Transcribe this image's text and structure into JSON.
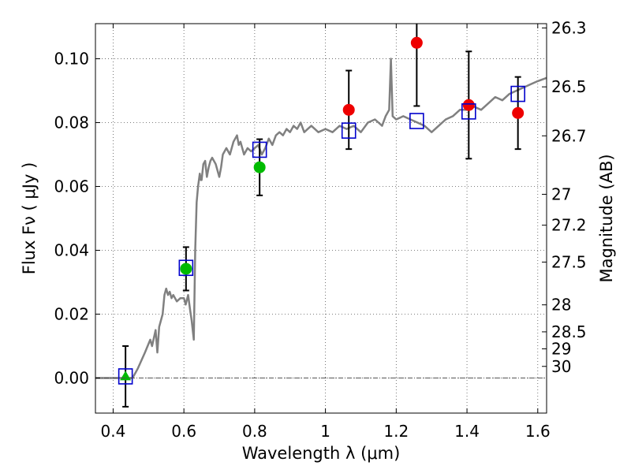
{
  "chart_data": {
    "type": "scatter",
    "xlabel": "Wavelength  λ (μm)",
    "ylabel": "Flux  Fν  ( μJy )",
    "y2label": "Magnitude (AB)",
    "xlim": [
      0.35,
      1.625
    ],
    "ylim": [
      -0.011,
      0.111
    ],
    "grid": true,
    "x_ticks": [
      {
        "value": 0.4,
        "label": "0.4"
      },
      {
        "value": 0.6,
        "label": "0.6"
      },
      {
        "value": 0.8,
        "label": "0.8"
      },
      {
        "value": 1.0,
        "label": "1"
      },
      {
        "value": 1.2,
        "label": "1.2"
      },
      {
        "value": 1.4,
        "label": "1.4"
      },
      {
        "value": 1.6,
        "label": "1.6"
      }
    ],
    "y_ticks": [
      {
        "value": 0.0,
        "label": "0.00"
      },
      {
        "value": 0.02,
        "label": "0.02"
      },
      {
        "value": 0.04,
        "label": "0.04"
      },
      {
        "value": 0.06,
        "label": "0.06"
      },
      {
        "value": 0.08,
        "label": "0.08"
      },
      {
        "value": 0.1,
        "label": "0.10"
      }
    ],
    "mag_ticks": [
      {
        "mag": 26.3,
        "label": "26.3"
      },
      {
        "mag": 26.5,
        "label": "26.5"
      },
      {
        "mag": 26.7,
        "label": "26.7"
      },
      {
        "mag": 27.0,
        "label": "27"
      },
      {
        "mag": 27.2,
        "label": "27.2"
      },
      {
        "mag": 27.5,
        "label": "27.5"
      },
      {
        "mag": 28.0,
        "label": "28"
      },
      {
        "mag": 28.5,
        "label": "28.5"
      },
      {
        "mag": 29.0,
        "label": "29"
      },
      {
        "mag": 30.0,
        "label": "30"
      }
    ],
    "colors": {
      "model": "#808080",
      "box": "#0000cc",
      "red": "#ee0000",
      "green": "#00bb00",
      "errorbar": "#000000",
      "grid": "#555555"
    },
    "model_spectrum": [
      [
        0.35,
        0.0
      ],
      [
        0.44,
        0.0
      ],
      [
        0.455,
        0.0
      ],
      [
        0.47,
        0.003
      ],
      [
        0.49,
        0.008
      ],
      [
        0.505,
        0.012
      ],
      [
        0.51,
        0.01
      ],
      [
        0.52,
        0.015
      ],
      [
        0.525,
        0.008
      ],
      [
        0.53,
        0.016
      ],
      [
        0.54,
        0.02
      ],
      [
        0.545,
        0.026
      ],
      [
        0.55,
        0.028
      ],
      [
        0.555,
        0.026
      ],
      [
        0.56,
        0.027
      ],
      [
        0.565,
        0.025
      ],
      [
        0.57,
        0.026
      ],
      [
        0.58,
        0.024
      ],
      [
        0.59,
        0.025
      ],
      [
        0.6,
        0.025
      ],
      [
        0.605,
        0.023
      ],
      [
        0.612,
        0.026
      ],
      [
        0.618,
        0.021
      ],
      [
        0.622,
        0.018
      ],
      [
        0.628,
        0.012
      ],
      [
        0.632,
        0.04
      ],
      [
        0.636,
        0.055
      ],
      [
        0.64,
        0.06
      ],
      [
        0.645,
        0.064
      ],
      [
        0.648,
        0.062
      ],
      [
        0.65,
        0.062
      ],
      [
        0.655,
        0.067
      ],
      [
        0.66,
        0.068
      ],
      [
        0.665,
        0.063
      ],
      [
        0.67,
        0.066
      ],
      [
        0.675,
        0.068
      ],
      [
        0.68,
        0.069
      ],
      [
        0.69,
        0.067
      ],
      [
        0.7,
        0.063
      ],
      [
        0.705,
        0.066
      ],
      [
        0.71,
        0.07
      ],
      [
        0.72,
        0.072
      ],
      [
        0.73,
        0.07
      ],
      [
        0.74,
        0.074
      ],
      [
        0.75,
        0.076
      ],
      [
        0.755,
        0.073
      ],
      [
        0.76,
        0.074
      ],
      [
        0.77,
        0.07
      ],
      [
        0.78,
        0.072
      ],
      [
        0.79,
        0.071
      ],
      [
        0.8,
        0.072
      ],
      [
        0.81,
        0.073
      ],
      [
        0.82,
        0.07
      ],
      [
        0.83,
        0.072
      ],
      [
        0.84,
        0.075
      ],
      [
        0.85,
        0.073
      ],
      [
        0.86,
        0.076
      ],
      [
        0.87,
        0.077
      ],
      [
        0.88,
        0.076
      ],
      [
        0.89,
        0.078
      ],
      [
        0.9,
        0.077
      ],
      [
        0.91,
        0.079
      ],
      [
        0.92,
        0.078
      ],
      [
        0.93,
        0.08
      ],
      [
        0.94,
        0.077
      ],
      [
        0.95,
        0.078
      ],
      [
        0.96,
        0.079
      ],
      [
        0.97,
        0.078
      ],
      [
        0.98,
        0.077
      ],
      [
        1.0,
        0.078
      ],
      [
        1.02,
        0.077
      ],
      [
        1.04,
        0.079
      ],
      [
        1.06,
        0.078
      ],
      [
        1.08,
        0.079
      ],
      [
        1.1,
        0.077
      ],
      [
        1.12,
        0.08
      ],
      [
        1.14,
        0.081
      ],
      [
        1.15,
        0.08
      ],
      [
        1.16,
        0.079
      ],
      [
        1.17,
        0.082
      ],
      [
        1.18,
        0.084
      ],
      [
        1.185,
        0.1
      ],
      [
        1.19,
        0.082
      ],
      [
        1.2,
        0.081
      ],
      [
        1.22,
        0.082
      ],
      [
        1.24,
        0.081
      ],
      [
        1.26,
        0.08
      ],
      [
        1.28,
        0.079
      ],
      [
        1.3,
        0.077
      ],
      [
        1.32,
        0.079
      ],
      [
        1.34,
        0.081
      ],
      [
        1.36,
        0.082
      ],
      [
        1.38,
        0.084
      ],
      [
        1.4,
        0.084
      ],
      [
        1.42,
        0.085
      ],
      [
        1.44,
        0.084
      ],
      [
        1.46,
        0.086
      ],
      [
        1.48,
        0.088
      ],
      [
        1.5,
        0.087
      ],
      [
        1.52,
        0.089
      ],
      [
        1.54,
        0.09
      ],
      [
        1.56,
        0.091
      ],
      [
        1.58,
        0.092
      ],
      [
        1.6,
        0.093
      ],
      [
        1.625,
        0.094
      ]
    ],
    "model_boxes": [
      {
        "x": 0.435,
        "y": 0.0005
      },
      {
        "x": 0.606,
        "y": 0.0345
      },
      {
        "x": 0.814,
        "y": 0.0715
      },
      {
        "x": 1.066,
        "y": 0.0775
      },
      {
        "x": 1.258,
        "y": 0.0805
      },
      {
        "x": 1.405,
        "y": 0.0835
      },
      {
        "x": 1.544,
        "y": 0.089
      }
    ],
    "observed_points": [
      {
        "x": 0.435,
        "y": 0.0005,
        "yerr": 0.0095,
        "marker": "triangle",
        "color": "green"
      },
      {
        "x": 0.606,
        "y": 0.0342,
        "yerr": 0.0068,
        "marker": "circle",
        "color": "green"
      },
      {
        "x": 0.814,
        "y": 0.066,
        "yerr": 0.0088,
        "marker": "circle",
        "color": "green"
      },
      {
        "x": 1.066,
        "y": 0.084,
        "yerr": 0.0123,
        "marker": "circle",
        "color": "red"
      },
      {
        "x": 1.258,
        "y": 0.105,
        "yerr": 0.0198,
        "marker": "circle",
        "color": "red"
      },
      {
        "x": 1.405,
        "y": 0.0855,
        "yerr": 0.0168,
        "marker": "circle",
        "color": "red"
      },
      {
        "x": 1.544,
        "y": 0.083,
        "yerr": 0.0113,
        "marker": "circle",
        "color": "red"
      }
    ]
  }
}
